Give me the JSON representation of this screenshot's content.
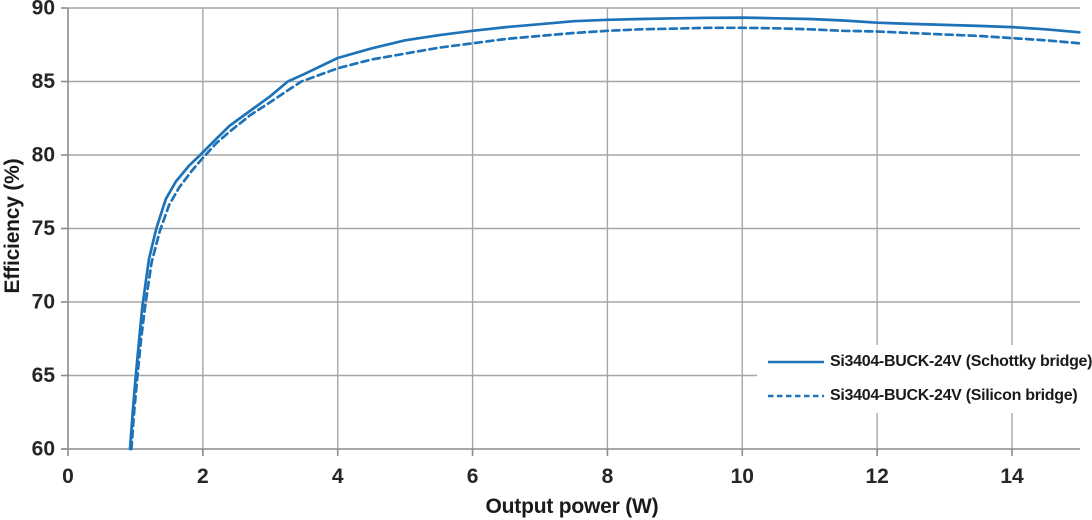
{
  "chart_data": {
    "type": "line",
    "title": "",
    "xlabel": "Output power (W)",
    "ylabel": "Efficiency (%)",
    "xlim": [
      0,
      15
    ],
    "ylim": [
      60,
      90
    ],
    "x_ticks": [
      0,
      2,
      4,
      6,
      8,
      10,
      12,
      14
    ],
    "y_ticks": [
      60,
      65,
      70,
      75,
      80,
      85,
      90
    ],
    "grid": true,
    "legend_position": "inside-lower-right",
    "series": [
      {
        "name": "Si3404-BUCK-24V (Schottky bridge)",
        "style": "solid",
        "color": "#1e73b8",
        "points": [
          [
            0.92,
            60.0
          ],
          [
            0.96,
            62.5
          ],
          [
            1.0,
            64.7
          ],
          [
            1.05,
            67.2
          ],
          [
            1.1,
            69.6
          ],
          [
            1.2,
            72.9
          ],
          [
            1.31,
            75.0
          ],
          [
            1.45,
            77.0
          ],
          [
            1.6,
            78.2
          ],
          [
            1.8,
            79.3
          ],
          [
            1.96,
            80.0
          ],
          [
            2.2,
            81.1
          ],
          [
            2.4,
            82.0
          ],
          [
            2.7,
            83.0
          ],
          [
            3.0,
            84.0
          ],
          [
            3.26,
            85.0
          ],
          [
            3.5,
            85.5
          ],
          [
            4.0,
            86.6
          ],
          [
            4.5,
            87.25
          ],
          [
            5.0,
            87.8
          ],
          [
            5.5,
            88.15
          ],
          [
            6.0,
            88.45
          ],
          [
            6.5,
            88.7
          ],
          [
            7.0,
            88.9
          ],
          [
            7.5,
            89.1
          ],
          [
            8.0,
            89.2
          ],
          [
            8.5,
            89.25
          ],
          [
            9.0,
            89.3
          ],
          [
            9.5,
            89.33
          ],
          [
            10.0,
            89.35
          ],
          [
            10.5,
            89.3
          ],
          [
            11.0,
            89.25
          ],
          [
            11.5,
            89.15
          ],
          [
            12.0,
            89.0
          ],
          [
            12.5,
            88.92
          ],
          [
            13.0,
            88.85
          ],
          [
            13.5,
            88.78
          ],
          [
            14.0,
            88.7
          ],
          [
            14.5,
            88.55
          ],
          [
            15.0,
            88.35
          ]
        ]
      },
      {
        "name": "Si3404-BUCK-24V (Silicon bridge)",
        "style": "dashed",
        "color": "#1e73b8",
        "points": [
          [
            0.94,
            60.0
          ],
          [
            0.98,
            62.5
          ],
          [
            1.03,
            65.0
          ],
          [
            1.08,
            67.3
          ],
          [
            1.14,
            69.6
          ],
          [
            1.24,
            72.7
          ],
          [
            1.36,
            74.8
          ],
          [
            1.5,
            76.6
          ],
          [
            1.65,
            77.8
          ],
          [
            1.85,
            79.0
          ],
          [
            2.0,
            79.8
          ],
          [
            2.2,
            80.8
          ],
          [
            2.4,
            81.6
          ],
          [
            2.7,
            82.7
          ],
          [
            3.0,
            83.6
          ],
          [
            3.46,
            85.0
          ],
          [
            4.0,
            85.9
          ],
          [
            4.5,
            86.5
          ],
          [
            5.0,
            86.9
          ],
          [
            5.5,
            87.3
          ],
          [
            6.0,
            87.6
          ],
          [
            6.5,
            87.9
          ],
          [
            7.0,
            88.1
          ],
          [
            7.5,
            88.3
          ],
          [
            8.0,
            88.45
          ],
          [
            8.5,
            88.55
          ],
          [
            9.0,
            88.6
          ],
          [
            9.5,
            88.65
          ],
          [
            10.0,
            88.65
          ],
          [
            10.5,
            88.62
          ],
          [
            11.0,
            88.55
          ],
          [
            11.5,
            88.45
          ],
          [
            12.0,
            88.4
          ],
          [
            12.5,
            88.3
          ],
          [
            13.0,
            88.2
          ],
          [
            13.5,
            88.1
          ],
          [
            14.0,
            87.95
          ],
          [
            14.5,
            87.8
          ],
          [
            15.0,
            87.6
          ]
        ]
      }
    ]
  },
  "colors": {
    "line_blue": "#1e73b8",
    "gridline": "#a6a6a6",
    "axis_line": "#8c8c8c",
    "tick_text": "#262626",
    "title_text": "#1a1a1a"
  }
}
